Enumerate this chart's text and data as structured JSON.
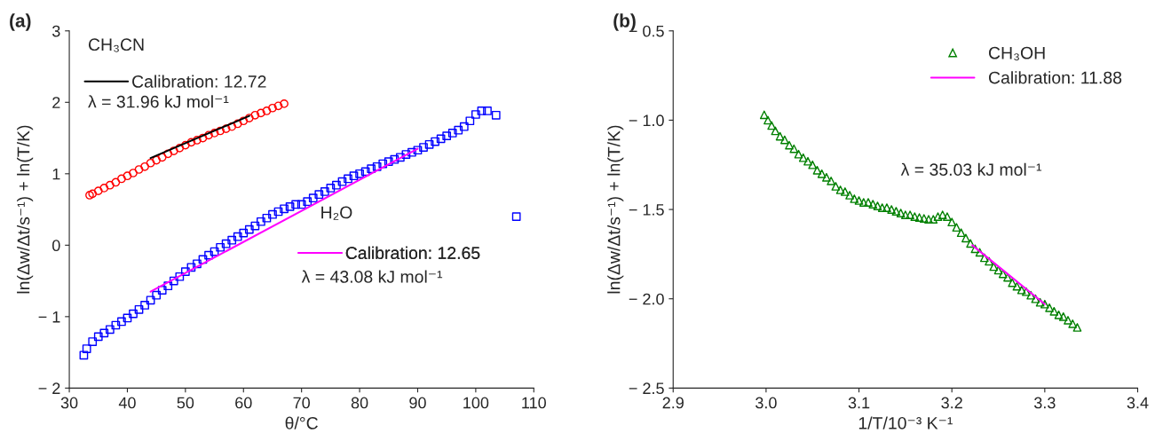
{
  "chart_data": [
    {
      "type": "scatter",
      "title": "(a)",
      "xlabel": "θ/°C",
      "ylabel": "ln(Δw/Δt/s⁻¹) + ln(T/K)",
      "xlim": [
        30,
        110
      ],
      "xticks": [
        30,
        40,
        50,
        60,
        70,
        80,
        90,
        100,
        110
      ],
      "ylim": [
        -2,
        3
      ],
      "yticks": [
        {
          "value": -2,
          "label": "− 2"
        },
        {
          "value": -1,
          "label": "− 1"
        },
        0,
        1,
        2,
        3
      ],
      "annotations": [
        "CH₃CN",
        "λ = 31.96 kJ mol⁻¹",
        "H₂O",
        "λ = 43.08 kJ mol⁻¹"
      ],
      "legend": "top left",
      "series": [
        {
          "marker": "circle",
          "color": "#ff0000",
          "x": [
            33.5,
            34,
            35,
            36,
            37,
            38,
            39,
            40,
            41,
            42,
            43,
            44,
            45,
            46,
            47,
            48,
            49,
            50,
            51,
            52,
            53,
            54,
            55,
            56,
            57,
            58,
            59,
            60,
            61,
            62,
            63,
            64,
            65,
            66,
            67
          ],
          "values": [
            0.7,
            0.72,
            0.76,
            0.8,
            0.84,
            0.88,
            0.93,
            0.97,
            1.01,
            1.06,
            1.1,
            1.15,
            1.19,
            1.23,
            1.28,
            1.32,
            1.36,
            1.4,
            1.44,
            1.47,
            1.5,
            1.54,
            1.57,
            1.6,
            1.63,
            1.66,
            1.7,
            1.74,
            1.78,
            1.82,
            1.85,
            1.88,
            1.92,
            1.95,
            1.98
          ]
        },
        {
          "type": "line",
          "name": "Calibration: 12.72",
          "color": "#000000",
          "x": [
            44,
            61
          ],
          "values": [
            1.22,
            1.81
          ]
        },
        {
          "marker": "square",
          "color": "#0000ff",
          "x": [
            32.5,
            33,
            34,
            35,
            36,
            37,
            38,
            39,
            40,
            41,
            42,
            43,
            44,
            45,
            46,
            47,
            48,
            49,
            50,
            51,
            52,
            53,
            54,
            55,
            56,
            57,
            58,
            59,
            60,
            61,
            62,
            63,
            64,
            65,
            66,
            67,
            68,
            69,
            70,
            71,
            72,
            73,
            74,
            75,
            76,
            77,
            78,
            79,
            80,
            81,
            82,
            83,
            84,
            85,
            86,
            87,
            88,
            89,
            90,
            91,
            92,
            93,
            94,
            95,
            96,
            97,
            98,
            99,
            100,
            101,
            102,
            103.5,
            107
          ],
          "values": [
            -1.54,
            -1.45,
            -1.35,
            -1.28,
            -1.23,
            -1.18,
            -1.12,
            -1.07,
            -1.02,
            -0.96,
            -0.9,
            -0.84,
            -0.77,
            -0.7,
            -0.63,
            -0.57,
            -0.5,
            -0.44,
            -0.37,
            -0.31,
            -0.26,
            -0.2,
            -0.14,
            -0.09,
            -0.03,
            0.02,
            0.07,
            0.12,
            0.17,
            0.22,
            0.27,
            0.33,
            0.38,
            0.43,
            0.47,
            0.51,
            0.54,
            0.57,
            0.57,
            0.61,
            0.66,
            0.71,
            0.75,
            0.8,
            0.84,
            0.89,
            0.93,
            0.97,
            1.0,
            1.03,
            1.07,
            1.1,
            1.14,
            1.17,
            1.2,
            1.23,
            1.27,
            1.3,
            1.33,
            1.37,
            1.41,
            1.45,
            1.49,
            1.53,
            1.57,
            1.61,
            1.66,
            1.74,
            1.83,
            1.88,
            1.88,
            1.82,
            0.4
          ]
        },
        {
          "type": "line",
          "name": "Calibration: 12.65",
          "color": "#ff00ff",
          "x": [
            44,
            90
          ],
          "values": [
            -0.65,
            1.35
          ]
        }
      ]
    },
    {
      "type": "scatter",
      "title": "(b)",
      "xlabel": "1/T/10⁻³ K⁻¹",
      "ylabel": "ln(Δw/Δt/s⁻¹) + ln(T/K)",
      "xlim": [
        2.9,
        3.4
      ],
      "xticks": [
        2.9,
        {
          "value": 3.0,
          "label": "3.0"
        },
        3.1,
        3.2,
        3.3,
        3.4
      ],
      "ylim": [
        -2.5,
        -0.5
      ],
      "yticks": [
        {
          "value": -2.5,
          "label": "− 2.5"
        },
        {
          "value": -2.0,
          "label": "− 2.0"
        },
        {
          "value": -1.5,
          "label": "− 1.5"
        },
        {
          "value": -1.0,
          "label": "− 1.0"
        },
        {
          "value": -0.5,
          "label": "− 0.5"
        }
      ],
      "annotations": [
        "λ = 35.03 kJ mol⁻¹"
      ],
      "legend": "top right",
      "series": [
        {
          "name": "CH₃OH",
          "marker": "triangle",
          "color": "#008000",
          "x": [
            2.998,
            3.002,
            3.006,
            3.01,
            3.015,
            3.02,
            3.025,
            3.03,
            3.035,
            3.04,
            3.045,
            3.05,
            3.055,
            3.06,
            3.065,
            3.07,
            3.075,
            3.08,
            3.085,
            3.09,
            3.095,
            3.1,
            3.105,
            3.11,
            3.115,
            3.12,
            3.125,
            3.13,
            3.135,
            3.14,
            3.145,
            3.15,
            3.155,
            3.16,
            3.165,
            3.17,
            3.175,
            3.18,
            3.185,
            3.19,
            3.195,
            3.2,
            3.205,
            3.21,
            3.215,
            3.22,
            3.225,
            3.23,
            3.235,
            3.24,
            3.245,
            3.25,
            3.255,
            3.26,
            3.265,
            3.27,
            3.275,
            3.28,
            3.285,
            3.29,
            3.295,
            3.3,
            3.305,
            3.31,
            3.315,
            3.32,
            3.325,
            3.33,
            3.335
          ],
          "values": [
            -0.97,
            -1.0,
            -1.03,
            -1.06,
            -1.09,
            -1.11,
            -1.14,
            -1.16,
            -1.19,
            -1.21,
            -1.23,
            -1.25,
            -1.28,
            -1.3,
            -1.32,
            -1.34,
            -1.37,
            -1.39,
            -1.4,
            -1.42,
            -1.44,
            -1.45,
            -1.46,
            -1.46,
            -1.47,
            -1.48,
            -1.49,
            -1.49,
            -1.5,
            -1.51,
            -1.52,
            -1.53,
            -1.53,
            -1.54,
            -1.545,
            -1.55,
            -1.555,
            -1.555,
            -1.54,
            -1.53,
            -1.54,
            -1.57,
            -1.6,
            -1.63,
            -1.66,
            -1.69,
            -1.72,
            -1.74,
            -1.77,
            -1.79,
            -1.82,
            -1.84,
            -1.86,
            -1.88,
            -1.91,
            -1.93,
            -1.95,
            -1.96,
            -1.98,
            -2.0,
            -2.02,
            -2.03,
            -2.05,
            -2.07,
            -2.09,
            -2.1,
            -2.12,
            -2.14,
            -2.16
          ]
        },
        {
          "type": "line",
          "name": "Calibration: 11.88",
          "color": "#ff00ff",
          "x": [
            3.222,
            3.3
          ],
          "values": [
            -1.7,
            -2.03
          ]
        }
      ]
    }
  ]
}
